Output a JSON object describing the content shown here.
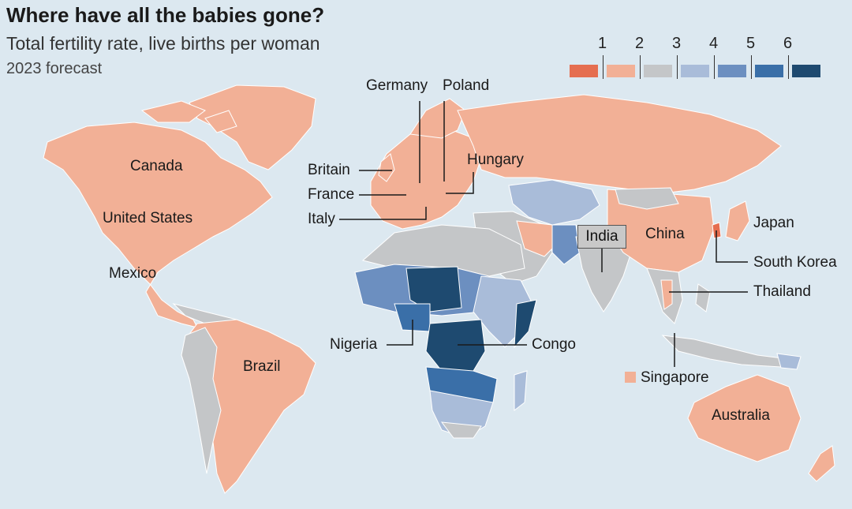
{
  "header": {
    "title": "Where have all the babies gone?",
    "subtitle": "Total fertility rate, live births per woman",
    "note": "2023 forecast"
  },
  "legend": {
    "ticks": [
      "1",
      "2",
      "3",
      "4",
      "5",
      "6"
    ],
    "colors": [
      "#e56e50",
      "#f2b096",
      "#c4c6c8",
      "#a9bcd9",
      "#6c8fc0",
      "#3a6fa8",
      "#1e4a70"
    ]
  },
  "colors": {
    "ocean": "#dce8f0",
    "below_replacement": "#f2b096",
    "very_low": "#e56e50",
    "around_replacement": "#c4c6c8",
    "high": "#6c8fc0",
    "very_high": "#1e4a70"
  },
  "labels": {
    "canada": "Canada",
    "united_states": "United States",
    "mexico": "Mexico",
    "brazil": "Brazil",
    "britain": "Britain",
    "france": "France",
    "italy": "Italy",
    "germany": "Germany",
    "poland": "Poland",
    "hungary": "Hungary",
    "india": "India",
    "china": "China",
    "japan": "Japan",
    "south_korea": "South Korea",
    "thailand": "Thailand",
    "singapore": "Singapore",
    "australia": "Australia",
    "nigeria": "Nigeria",
    "congo": "Congo"
  }
}
